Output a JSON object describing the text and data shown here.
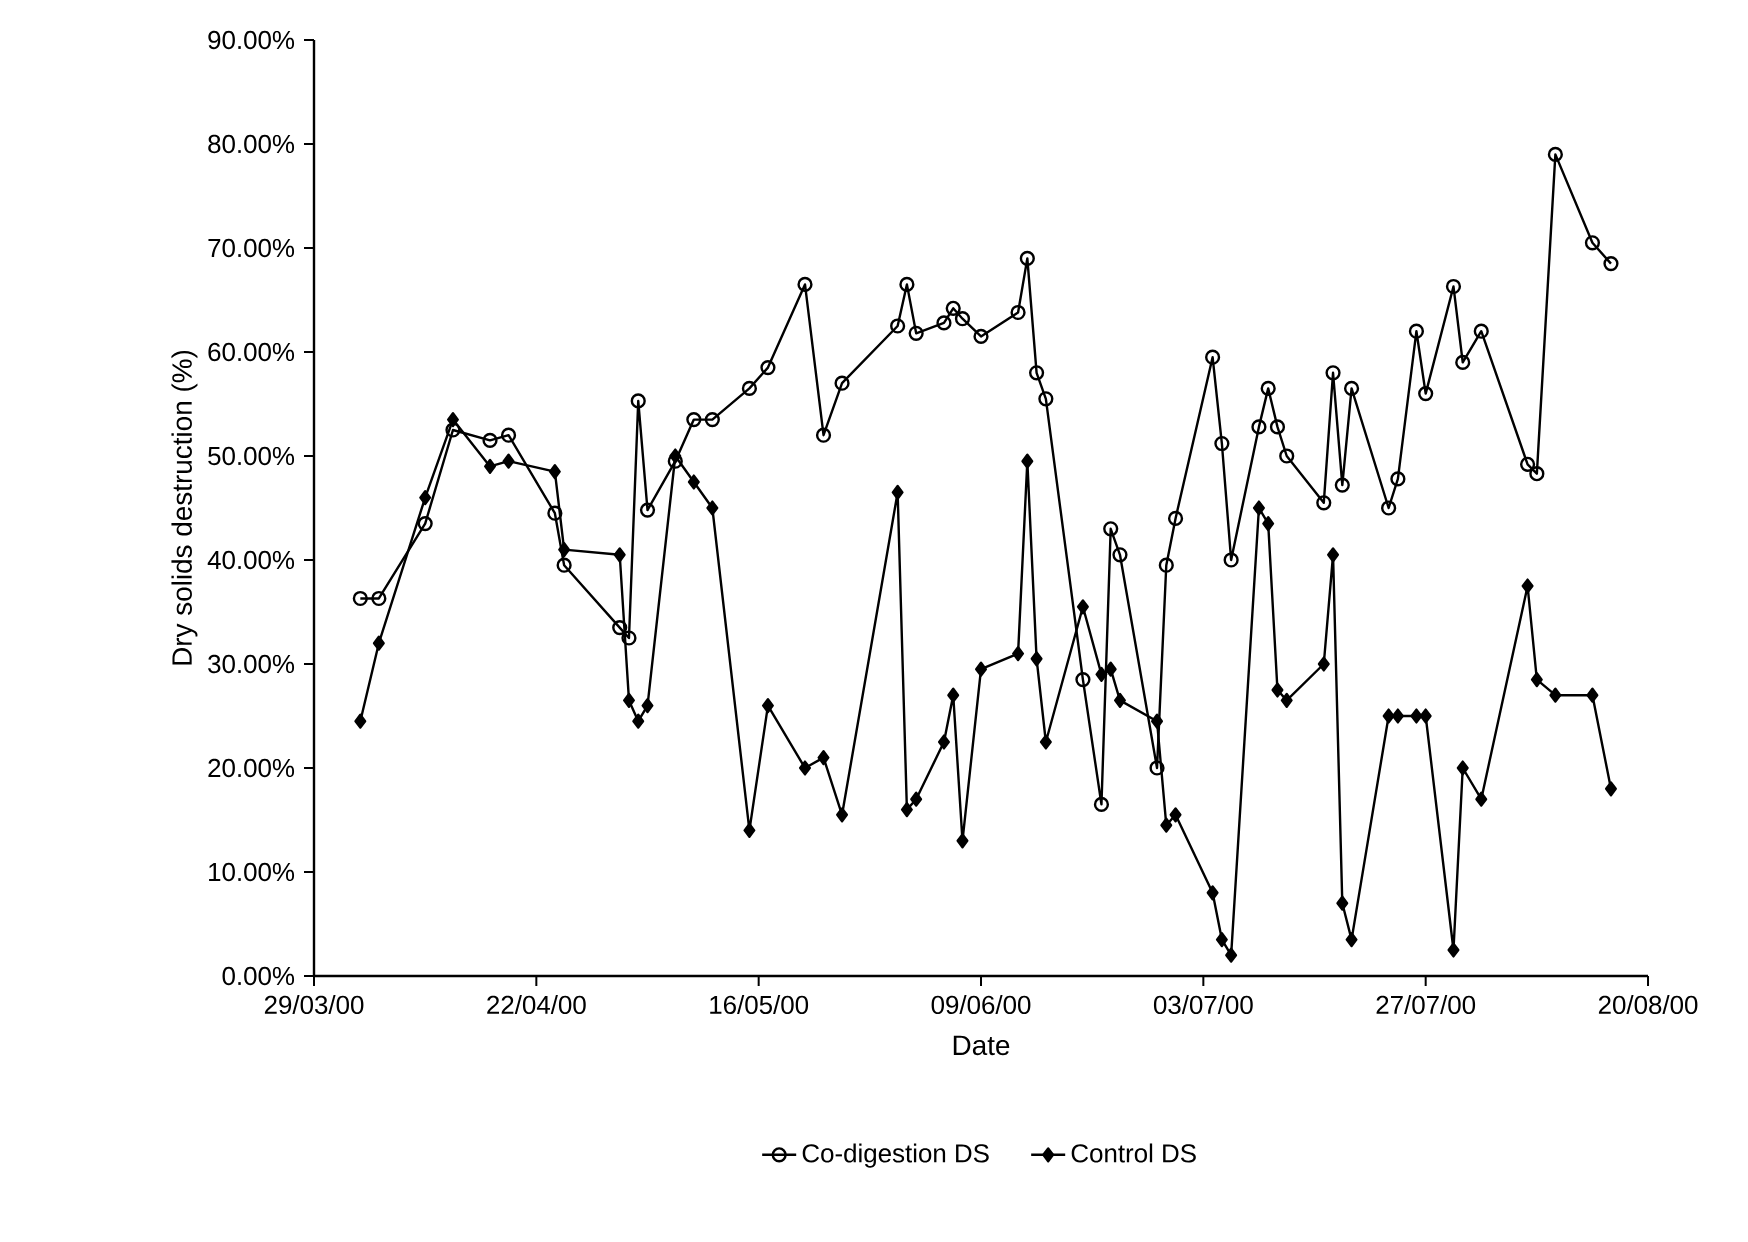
{
  "chart_data": {
    "type": "line",
    "xlabel": "Date",
    "ylabel": "Dry solids destruction (%)",
    "x": [
      "2000-04-03",
      "2000-04-05",
      "2000-04-10",
      "2000-04-13",
      "2000-04-17",
      "2000-04-19",
      "2000-04-24",
      "2000-04-25",
      "2000-05-01",
      "2000-05-02",
      "2000-05-03",
      "2000-05-04",
      "2000-05-07",
      "2000-05-09",
      "2000-05-11",
      "2000-05-15",
      "2000-05-17",
      "2000-05-21",
      "2000-05-23",
      "2000-05-25",
      "2000-05-31",
      "2000-06-01",
      "2000-06-02",
      "2000-06-05",
      "2000-06-06",
      "2000-06-07",
      "2000-06-09",
      "2000-06-13",
      "2000-06-14",
      "2000-06-15",
      "2000-06-16",
      "2000-06-20",
      "2000-06-22",
      "2000-06-23",
      "2000-06-24",
      "2000-06-28",
      "2000-06-29",
      "2000-06-30",
      "2000-07-04",
      "2000-07-05",
      "2000-07-06",
      "2000-07-09",
      "2000-07-10",
      "2000-07-11",
      "2000-07-12",
      "2000-07-16",
      "2000-07-17",
      "2000-07-18",
      "2000-07-19",
      "2000-07-23",
      "2000-07-24",
      "2000-07-26",
      "2000-07-27",
      "2000-07-30",
      "2000-07-31",
      "2000-08-02",
      "2000-08-07",
      "2000-08-08",
      "2000-08-10",
      "2000-08-14",
      "2000-08-16"
    ],
    "series": [
      {
        "name": "Co-digestion DS",
        "color": "#000000",
        "marker": "circle",
        "values": [
          36.3,
          36.3,
          43.5,
          52.5,
          51.5,
          52,
          44.5,
          39.5,
          33.5,
          32.5,
          55.3,
          44.8,
          49.5,
          53.5,
          53.5,
          56.5,
          58.5,
          66.5,
          52,
          57,
          62.5,
          66.5,
          61.8,
          62.8,
          64.2,
          63.2,
          61.5,
          63.8,
          69,
          58,
          55.5,
          28.5,
          16.5,
          43,
          40.5,
          20,
          39.5,
          44,
          59.5,
          51.2,
          40,
          52.8,
          56.5,
          52.8,
          50,
          45.5,
          58,
          47.2,
          56.5,
          45,
          47.8,
          62,
          56,
          66.3,
          59,
          62,
          49.2,
          48.3,
          79,
          70.5,
          68.5
        ]
      },
      {
        "name": "Control DS",
        "color": "#000000",
        "marker": "diamond",
        "values": [
          24.5,
          32,
          46,
          53.5,
          49,
          49.5,
          48.5,
          41,
          40.5,
          26.5,
          24.5,
          26,
          50,
          47.5,
          45,
          14,
          26,
          20,
          21,
          15.5,
          46.5,
          16,
          17,
          22.5,
          27,
          13,
          29.5,
          31,
          49.5,
          30.5,
          22.5,
          35.5,
          29,
          29.5,
          26.5,
          24.5,
          14.5,
          15.5,
          8,
          3.5,
          2,
          45,
          43.5,
          27.5,
          26.5,
          30,
          40.5,
          7,
          3.5,
          25,
          25,
          25,
          25,
          2.5,
          20,
          17,
          37.5,
          28.5,
          27,
          27,
          18
        ]
      }
    ],
    "xlim": [
      "2000-03-29",
      "2000-08-20"
    ],
    "xticks": [
      {
        "value": "2000-03-29",
        "label": "29/03/00"
      },
      {
        "value": "2000-04-22",
        "label": "22/04/00"
      },
      {
        "value": "2000-05-16",
        "label": "16/05/00"
      },
      {
        "value": "2000-06-09",
        "label": "09/06/00"
      },
      {
        "value": "2000-07-03",
        "label": "03/07/00"
      },
      {
        "value": "2000-07-27",
        "label": "27/07/00"
      },
      {
        "value": "2000-08-20",
        "label": "20/08/00"
      }
    ],
    "ylim": [
      0,
      90
    ],
    "yticks": [
      {
        "value": 0,
        "label": "0.00%"
      },
      {
        "value": 10,
        "label": "10.00%"
      },
      {
        "value": 20,
        "label": "20.00%"
      },
      {
        "value": 30,
        "label": "30.00%"
      },
      {
        "value": 40,
        "label": "40.00%"
      },
      {
        "value": 50,
        "label": "50.00%"
      },
      {
        "value": 60,
        "label": "60.00%"
      },
      {
        "value": 70,
        "label": "70.00%"
      },
      {
        "value": 80,
        "label": "80.00%"
      },
      {
        "value": 90,
        "label": "90.00%"
      }
    ],
    "grid": false,
    "legend": "bottom"
  }
}
